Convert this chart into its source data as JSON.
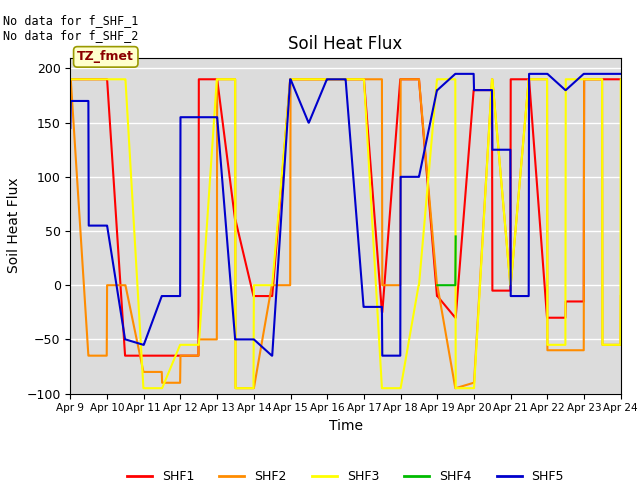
{
  "title": "Soil Heat Flux",
  "ylabel": "Soil Heat Flux",
  "xlabel": "Time",
  "ylim": [
    -100,
    210
  ],
  "background_color": "#dcdcdc",
  "annotation_text": "No data for f_SHF_1\nNo data for f_SHF_2",
  "box_label": "TZ_fmet",
  "series": {
    "SHF1": {
      "color": "#ff0000",
      "x": [
        0,
        0.01,
        0.49,
        0.5,
        0.99,
        1.0,
        1.49,
        1.5,
        1.99,
        2.0,
        2.49,
        2.5,
        2.99,
        3.0,
        3.49,
        3.5,
        3.99,
        4.0,
        4.49,
        4.5,
        4.99,
        5.0,
        5.49,
        5.5,
        5.99,
        6.0,
        6.49,
        6.5,
        6.99,
        7.0,
        7.49,
        7.5,
        7.99,
        8.0,
        8.49,
        8.5,
        8.99,
        9.0,
        9.49,
        9.5,
        9.99,
        10.0,
        10.49,
        10.5,
        10.99,
        11.0,
        11.49,
        11.5,
        11.99,
        12.0,
        12.49,
        12.5,
        12.99,
        13.0,
        13.49,
        13.5,
        13.99,
        14.0,
        14.49,
        14.5,
        14.99,
        15
      ],
      "y": [
        190,
        190,
        190,
        190,
        190,
        190,
        -65,
        -65,
        -65,
        -65,
        -65,
        -65,
        -65,
        -65,
        -65,
        190,
        190,
        190,
        60,
        60,
        -10,
        -10,
        -10,
        -10,
        190,
        190,
        190,
        190,
        190,
        190,
        190,
        190,
        190,
        190,
        -25,
        -25,
        190,
        190,
        190,
        190,
        -10,
        -10,
        -30,
        -30,
        180,
        180,
        180,
        -5,
        -5,
        190,
        190,
        190,
        -30,
        -30,
        -30,
        -15,
        -15,
        190,
        190,
        190,
        190,
        190
      ]
    },
    "SHF2": {
      "color": "#ff8c00",
      "x": [
        0,
        0.01,
        0.49,
        0.5,
        0.99,
        1.0,
        1.49,
        1.5,
        1.99,
        2.0,
        2.49,
        2.5,
        2.99,
        3.0,
        3.49,
        3.5,
        3.99,
        4.0,
        4.49,
        4.5,
        4.99,
        5.0,
        5.49,
        5.5,
        5.99,
        6.0,
        6.49,
        6.5,
        6.99,
        7.0,
        7.49,
        7.5,
        7.99,
        8.0,
        8.49,
        8.5,
        8.99,
        9.0,
        9.49,
        9.5,
        9.99,
        10.0,
        10.49,
        10.5,
        10.99,
        11.0,
        11.49,
        11.5,
        11.99,
        12.0,
        12.49,
        12.5,
        12.99,
        13.0,
        13.49,
        13.5,
        13.99,
        14.0,
        14.49,
        14.5,
        14.99,
        15
      ],
      "y": [
        190,
        190,
        -65,
        -65,
        -65,
        0,
        0,
        0,
        -80,
        -80,
        -80,
        -90,
        -90,
        -65,
        -65,
        -50,
        -50,
        190,
        190,
        -95,
        -95,
        -95,
        0,
        0,
        0,
        190,
        190,
        190,
        190,
        190,
        190,
        190,
        190,
        190,
        190,
        0,
        0,
        190,
        190,
        190,
        0,
        0,
        -95,
        -95,
        -90,
        -90,
        190,
        190,
        0,
        0,
        190,
        190,
        190,
        -60,
        -60,
        -60,
        -60,
        190,
        190,
        -55,
        -55,
        -10
      ]
    },
    "SHF3": {
      "color": "#ffff00",
      "x": [
        0,
        0.01,
        0.49,
        0.5,
        0.99,
        1.0,
        1.49,
        1.5,
        1.99,
        2.0,
        2.49,
        2.5,
        2.99,
        3.0,
        3.49,
        3.5,
        3.99,
        4.0,
        4.49,
        4.5,
        4.99,
        5.0,
        5.49,
        5.5,
        5.99,
        6.0,
        6.49,
        6.5,
        6.99,
        7.0,
        7.49,
        7.5,
        7.99,
        8.0,
        8.49,
        8.5,
        8.99,
        9.0,
        9.49,
        9.5,
        9.99,
        10.0,
        10.49,
        10.5,
        10.99,
        11.0,
        11.49,
        11.5,
        11.99,
        12.0,
        12.49,
        12.5,
        12.99,
        13.0,
        13.49,
        13.5,
        13.99,
        14.0,
        14.49,
        14.5,
        14.99,
        15
      ],
      "y": [
        190,
        190,
        190,
        190,
        190,
        190,
        190,
        190,
        -95,
        -95,
        -95,
        -95,
        -55,
        -55,
        -55,
        -55,
        190,
        190,
        190,
        -95,
        -95,
        0,
        0,
        0,
        190,
        190,
        190,
        190,
        190,
        190,
        190,
        190,
        190,
        190,
        -95,
        -95,
        -95,
        -95,
        0,
        0,
        190,
        190,
        190,
        -95,
        -95,
        -95,
        190,
        190,
        0,
        0,
        190,
        190,
        190,
        -55,
        -55,
        190,
        190,
        190,
        190,
        -55,
        -55,
        190
      ]
    },
    "SHF4": {
      "color": "#00bb00",
      "x": [
        10.0,
        10.01,
        10.49,
        10.5
      ],
      "y": [
        0,
        0,
        0,
        45
      ]
    },
    "SHF5": {
      "color": "#0000cc",
      "x": [
        0,
        0.01,
        0.49,
        0.5,
        0.99,
        1.0,
        1.49,
        1.5,
        1.99,
        2.0,
        2.49,
        2.5,
        2.99,
        3.0,
        3.49,
        3.5,
        3.99,
        4.0,
        4.49,
        4.5,
        4.99,
        5.0,
        5.49,
        5.5,
        5.99,
        6.0,
        6.49,
        6.5,
        6.99,
        7.0,
        7.49,
        7.5,
        7.99,
        8.0,
        8.49,
        8.5,
        8.99,
        9.0,
        9.49,
        9.5,
        9.99,
        10.0,
        10.49,
        10.5,
        10.99,
        11.0,
        11.49,
        11.5,
        11.99,
        12.0,
        12.49,
        12.5,
        12.99,
        13.0,
        13.49,
        13.5,
        13.99,
        14.0,
        14.49,
        14.5,
        14.99,
        15
      ],
      "y": [
        145,
        170,
        170,
        55,
        55,
        55,
        -50,
        -50,
        -55,
        -55,
        -10,
        -10,
        -10,
        155,
        155,
        155,
        155,
        155,
        -50,
        -50,
        -50,
        -50,
        -65,
        -65,
        190,
        190,
        150,
        150,
        190,
        190,
        190,
        190,
        -20,
        -20,
        -20,
        -65,
        -65,
        100,
        100,
        100,
        180,
        180,
        195,
        195,
        195,
        180,
        180,
        125,
        125,
        -10,
        -10,
        195,
        195,
        195,
        180,
        180,
        195,
        195,
        195,
        195,
        195,
        195
      ]
    }
  },
  "xtick_labels": [
    "Apr 9",
    "Apr 10",
    "Apr 11",
    "Apr 12",
    "Apr 13",
    "Apr 14",
    "Apr 15",
    "Apr 16",
    "Apr 17",
    "Apr 18",
    "Apr 19",
    "Apr 20",
    "Apr 21",
    "Apr 22",
    "Apr 23",
    "Apr 24"
  ],
  "xtick_positions": [
    0,
    1,
    2,
    3,
    4,
    5,
    6,
    7,
    8,
    9,
    10,
    11,
    12,
    13,
    14,
    15
  ],
  "ytick_values": [
    -100,
    -50,
    0,
    50,
    100,
    150,
    200
  ],
  "legend_entries": [
    {
      "label": "SHF1",
      "color": "#ff0000"
    },
    {
      "label": "SHF2",
      "color": "#ff8c00"
    },
    {
      "label": "SHF3",
      "color": "#ffff00"
    },
    {
      "label": "SHF4",
      "color": "#00bb00"
    },
    {
      "label": "SHF5",
      "color": "#0000cc"
    }
  ],
  "figsize": [
    6.4,
    4.8
  ],
  "dpi": 100
}
